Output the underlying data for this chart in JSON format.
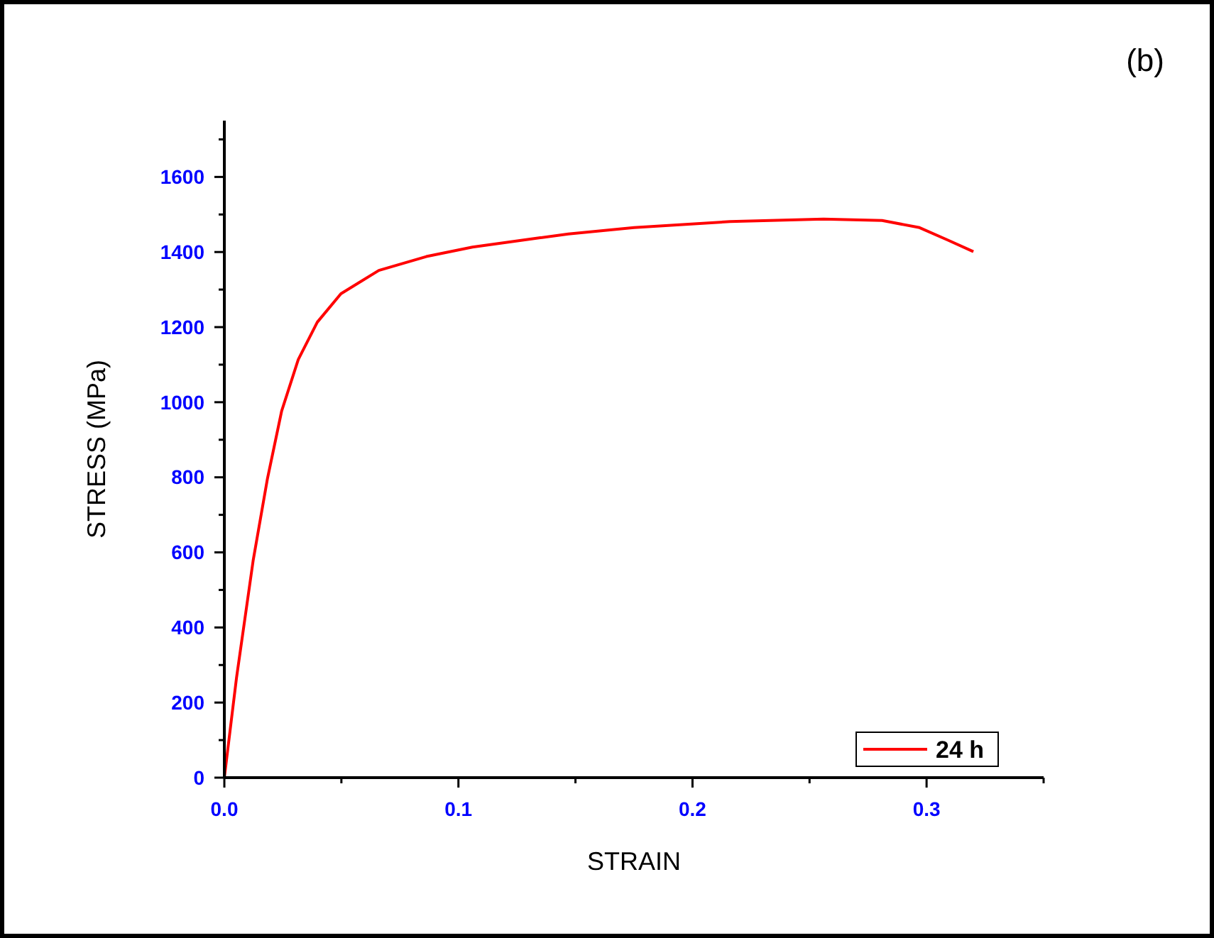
{
  "chart_data": {
    "type": "line",
    "xlabel": "STRAIN",
    "ylabel": "STRESS (MPa)",
    "annotations": [
      "(b)"
    ],
    "xlim": [
      0,
      0.35
    ],
    "ylim": [
      0,
      1750
    ],
    "xticks": [
      {
        "value": 0,
        "label": "0.0"
      },
      {
        "value": 0.05,
        "label": null
      },
      0.1,
      {
        "value": 0.15,
        "label": null
      },
      0.2,
      {
        "value": 0.25,
        "label": null
      },
      0.3,
      {
        "value": 0.35,
        "label": null
      }
    ],
    "yticks": [
      0,
      {
        "value": 100,
        "label": null
      },
      200,
      {
        "value": 300,
        "label": null
      },
      400,
      {
        "value": 500,
        "label": null
      },
      600,
      {
        "value": 700,
        "label": null
      },
      800,
      {
        "value": 900,
        "label": null
      },
      1000,
      {
        "value": 1100,
        "label": null
      },
      1200,
      {
        "value": 1300,
        "label": null
      },
      1400,
      {
        "value": 1500,
        "label": null
      },
      1600,
      {
        "value": 1700,
        "label": null
      }
    ],
    "grid": false,
    "legend": "bottom right",
    "marker": "none",
    "line_style": "solid",
    "series": [
      {
        "name": "24 h",
        "color": "#ff0000",
        "x": [
          0,
          0.0052,
          0.0123,
          0.0184,
          0.0245,
          0.0316,
          0.0397,
          0.0498,
          0.066,
          0.0863,
          0.106,
          0.135,
          0.147,
          0.175,
          0.216,
          0.256,
          0.281,
          0.297,
          0.309,
          0.32
        ],
        "values": [
          0,
          266,
          578,
          796,
          977,
          1114,
          1213,
          1289,
          1351,
          1388,
          1413,
          1438,
          1448,
          1465,
          1481,
          1488,
          1484,
          1465,
          1432,
          1401
        ]
      }
    ]
  }
}
